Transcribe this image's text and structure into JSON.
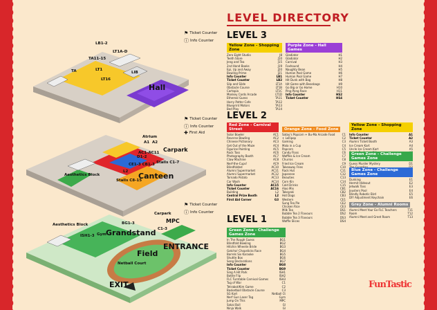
{
  "title": "LEVEL DIRECTORY",
  "legend": {
    "ticket_counter": "Ticket Counter",
    "info_counter": "Info Counter",
    "first_aid": "First Aid"
  },
  "map": {
    "level3": {
      "hall": "Hall",
      "lib": "LIB",
      "ta": "TA",
      "ta11": "TA11-15",
      "lt1": "LT1",
      "lt1a": "LT1A-D",
      "lt16": "LT16",
      "lb": "LB1-2",
      "canteen_stalls": "Stalls"
    },
    "level2": {
      "atrium": "Atrium",
      "a1": "A1",
      "a2": "A2",
      "ac": "AC1-AC11",
      "carpark": "Carpark",
      "canteen": "Canteen",
      "stalls1": "Stalls C1-7",
      "stalls2": "Stalls C8-15",
      "ce": "CE1-3 CB1-3",
      "l2": "L2",
      "authentics": "Aesthetics Block",
      "d": "D1-2"
    },
    "level1": {
      "grandstand": "Grandstand",
      "field": "Field",
      "entrance": "ENTRANCE",
      "exit": "EXIT",
      "mpc": "MPC",
      "carpark": "Carpark",
      "gym": "Gym",
      "netball": "Netball Court",
      "aesthetics": "Aesthetics Block",
      "isl": "ISH1-3",
      "bg": "BG1-3",
      "ch": "C1-3"
    }
  },
  "levels": [
    {
      "name": "LEVEL 3",
      "zones": [
        {
          "header": "Yellow Zone - Shopping Zone",
          "color": "#f5d000",
          "text_color": "#111",
          "rows": [
            [
              "Zero Eight Studio",
              "J8"
            ],
            [
              "Teeth Store",
              "J10"
            ],
            [
              "Jeng and Tea",
              "J15"
            ],
            [
              "2nd Hand Books",
              "J19"
            ],
            [
              "Epi, Up and Away",
              "J20"
            ],
            [
              "Bowling Prime",
              "J21"
            ],
            [
              "Info Counter",
              "LB1"
            ],
            [
              "Ticket Counter",
              "LB2"
            ],
            [
              "Slip and Slide",
              "LT1A"
            ],
            [
              "Obstacle Course",
              "LT1B"
            ],
            [
              "Cartopia",
              "LT1C"
            ],
            [
              "Monkey Cards Arcade",
              "LT1D"
            ],
            [
              "Ethereal Guess",
              "TA11"
            ],
            [
              "Harry Potter Cafe",
              "TA12"
            ],
            [
              "Blueprint Motors",
              "TA13"
            ],
            [
              "Bed Play",
              "TA14"
            ]
          ]
        },
        {
          "header": "Purple Zone - Hall Games",
          "color": "#9b3fd6",
          "text_color": "#fff",
          "rows": [
            [
              "Gladiator",
              "H1"
            ],
            [
              "Gladiator",
              "H2"
            ],
            [
              "Carnival",
              "H3"
            ],
            [
              "Foxhound",
              "H4"
            ],
            [
              "Naughty Bean",
              "H5"
            ],
            [
              "Human Pool Game",
              "H6"
            ],
            [
              "Human Pool Game",
              "H7"
            ],
            [
              "Hit Dunk with Bag",
              "H8"
            ],
            [
              "Hit Game with Beanbags",
              "H9"
            ],
            [
              "Go Big or Go Home",
              "H10"
            ],
            [
              "Ping Pong Race",
              "H11"
            ],
            [
              "Info Counter",
              "HS2"
            ],
            [
              "Ticket Counter",
              "HS4"
            ]
          ]
        }
      ]
    },
    {
      "name": "LEVEL 2",
      "zones": [
        {
          "header": "Red Zone - Carnival Street",
          "color": "#e0262b",
          "text_color": "#fff",
          "rows": [
            [
              "Solar Bowler",
              "AC1"
            ],
            [
              "Reverse Bowling",
              "AC2"
            ],
            [
              "Chinese Pictionary",
              "AC3"
            ],
            [
              "Get Out of the Maze",
              "AC4"
            ],
            [
              "Figurine Painting",
              "AC5"
            ],
            [
              "Rock Toss",
              "AC6"
            ],
            [
              "Photography Booth",
              "AC7"
            ],
            [
              "Claw Machine",
              "AC8"
            ],
            [
              "Nerf-the-Cups!",
              "AC9"
            ],
            [
              "Blindfolded",
              "AC10"
            ],
            [
              "Alumni Supermarket",
              "AC11"
            ],
            [
              "Alumni Supermarket",
              "AC12"
            ],
            [
              "Tornado Potato",
              "AC13"
            ],
            [
              "Car Wash",
              "AC14"
            ],
            [
              "Info Counter",
              "AC15"
            ],
            [
              "Ticket Counter",
              "AC16"
            ],
            [
              "Building",
              "L2"
            ],
            [
              "Central Prize Booth",
              "L2"
            ],
            [
              "First Aid Corner",
              "G3"
            ]
          ]
        },
        {
          "header": "Orange Zone - Food Zone",
          "color": "#f08a1c",
          "text_color": "#fff",
          "rows": [
            [
              "Satay's Popcorn + Bu-Ma Arcade Food",
              "C1"
            ],
            [
              "+ Lollipop",
              "C2"
            ],
            [
              "Gaming",
              "C3"
            ],
            [
              "Mala in a Cup",
              "C4"
            ],
            [
              "Popcorn",
              "C5"
            ],
            [
              "Candy Floss",
              "C6"
            ],
            [
              "Waffles & Ice Cream",
              "C7"
            ],
            [
              "Churros",
              "C8"
            ],
            [
              "Fried Ice Cream",
              "C9"
            ],
            [
              "Takeaway Fries",
              "C10"
            ],
            [
              "Rack Hut",
              "C11"
            ],
            [
              "Japanese",
              "C12"
            ],
            [
              "Beauties",
              "C13"
            ],
            [
              "Corn Kin",
              "C14"
            ],
            [
              "Cold Drinks",
              "C15"
            ],
            [
              "Aloo Mix",
              "CB1"
            ],
            [
              "Takoyaki",
              "CB2"
            ],
            [
              "Hot Dogs",
              "CB3"
            ],
            [
              "Western",
              "CE1"
            ],
            [
              "Sung Tea Pie",
              "CE2"
            ],
            [
              "Chicken Rice",
              "CE3"
            ],
            [
              "Milk Tea",
              "DS1"
            ],
            [
              "Bubble Tea 2 Flavours",
              "DS2"
            ],
            [
              "Bubble Tea 3 Flavours",
              "DS3"
            ],
            [
              "Waffle Slices",
              "DS4"
            ]
          ]
        },
        {
          "header": "Yellow Zone - Shopping Zone",
          "color": "#f5d000",
          "text_color": "#111",
          "rows": [
            [
              "Info Counter",
              "A1"
            ],
            [
              "Ticket Counter",
              "A2"
            ],
            [
              "Alumni Ticket Booth",
              "A3"
            ],
            [
              "Ice Cream Kart",
              "A4"
            ],
            [
              "Uncle Ice Cream Kart",
              "A5"
            ],
            [
              "Snack Craft and Gift",
              "A6"
            ],
            [
              "Elder Friendship Club",
              "A7"
            ]
          ]
        },
        {
          "header": "Green Zone - Challenge Games Zone",
          "color": "#36a84a",
          "text_color": "#fff",
          "rows": [
            [
              "Guess Murder Mystery",
              "D1"
            ],
            [
              "The Guardian",
              "D2"
            ]
          ]
        },
        {
          "header": "Blue Zone - Challenge Games Zone",
          "color": "#2c6ad6",
          "text_color": "#fff",
          "rows": [
            [
              "Dunking",
              "E1"
            ],
            [
              "Hermit Hideout",
              "E2"
            ],
            [
              "Jetwalk Toss",
              "E3"
            ],
            [
              "Jousters Pool",
              "E4"
            ],
            [
              "Blindly Robotic Bird",
              "E5"
            ],
            [
              "DIY Adjustment Keychain",
              "E6"
            ]
          ]
        },
        {
          "header": "Grey Zone - Alumni Rooms",
          "color": "#8c8c8c",
          "text_color": "#fff",
          "rows": [
            [
              "Alumni Meet Your Ex-FLC Teachers",
              "T11"
            ],
            [
              "Room",
              "T12"
            ],
            [
              "Alumni Meet and Greet Room",
              "T13"
            ]
          ]
        }
      ]
    },
    {
      "name": "LEVEL 1",
      "zones": [
        {
          "header": "Green Zone - Challenge Games Zone",
          "color": "#36a84a",
          "text_color": "#fff",
          "rows": [
            [
              "In The Rough Guess",
              "BG1"
            ],
            [
              "Blindfold Bowling",
              "BG2"
            ],
            [
              "Hitchin Wheelie Bride",
              "BG3"
            ],
            [
              "Gotcha! Chopsticks Race",
              "BG4"
            ],
            [
              "Barrels Six Karaoke",
              "BG5"
            ],
            [
              "Shuttle Box",
              "BG6"
            ],
            [
              "Song Declarations",
              "BG7"
            ],
            [
              "Info Counter",
              "BG8"
            ],
            [
              "Ticket Counter",
              "BG9"
            ],
            [
              "Sing A Hit Park",
              "ISH1"
            ],
            [
              "Bottle Flip",
              "ISH2"
            ],
            [
              "FLC Turntable Carnival Games",
              "ISH3"
            ],
            [
              "Tug of War",
              "C1"
            ],
            [
              "Tetrabot/Kim Game",
              "C2"
            ],
            [
              "Basketball Obstacle Course",
              "C3"
            ],
            [
              "SG Kart",
              "Netball Ct"
            ],
            [
              "Nerf Gun Laser Tag",
              "Gym"
            ],
            [
              "Jump On This",
              "MPC"
            ],
            [
              "Sakai Bull",
              "Gl"
            ],
            [
              "Ninja Walk",
              "Gl"
            ]
          ]
        }
      ]
    }
  ],
  "logo_text": "FunTastic"
}
